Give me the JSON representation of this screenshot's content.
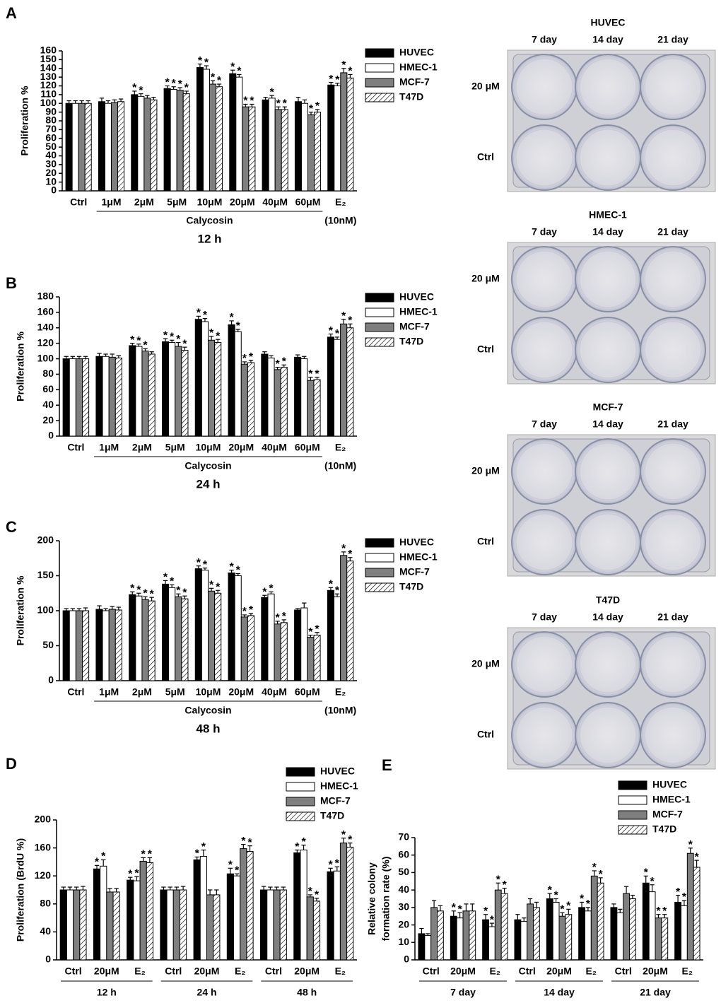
{
  "chart_data": [
    {
      "type": "bar",
      "panel": "A",
      "ylabel": "Proliferation %",
      "subtitle": "12 h",
      "group_label": "Calycosin",
      "note": "(10nM)",
      "categories": [
        "Ctrl",
        "1μM",
        "2μM",
        "5μM",
        "10μM",
        "20μM",
        "40μM",
        "60μM",
        "E₂"
      ],
      "ylim": [
        0,
        160
      ],
      "yticks": [
        0,
        10,
        20,
        30,
        40,
        50,
        60,
        70,
        80,
        90,
        100,
        110,
        120,
        130,
        140,
        150,
        160
      ],
      "legend": "upper right",
      "star": "*",
      "series": [
        {
          "name": "HUVEC",
          "color": "#000000",
          "values": [
            100,
            102,
            110,
            117,
            141,
            134,
            104,
            102,
            121
          ],
          "errors": [
            3,
            4,
            4,
            3,
            4,
            4,
            3,
            5,
            3
          ],
          "significance": [
            null,
            null,
            "*",
            "*",
            "*",
            "*",
            null,
            null,
            "*"
          ]
        },
        {
          "name": "HMEC-1",
          "color": "#ffffff",
          "values": [
            100,
            100,
            108,
            116,
            139,
            130,
            106,
            100,
            120
          ],
          "errors": [
            3,
            3,
            3,
            3,
            4,
            3,
            3,
            4,
            3
          ],
          "significance": [
            null,
            null,
            "*",
            "*",
            "*",
            "*",
            "*",
            null,
            "*"
          ]
        },
        {
          "name": "MCF-7",
          "color": "#7f7f7f",
          "values": [
            100,
            101,
            106,
            115,
            122,
            96,
            93,
            87,
            135
          ],
          "errors": [
            3,
            3,
            3,
            3,
            4,
            3,
            3,
            3,
            5
          ],
          "significance": [
            null,
            null,
            null,
            "*",
            "*",
            "*",
            "*",
            "*",
            "*"
          ]
        },
        {
          "name": "T47D",
          "color": "#ffffff",
          "hatch": true,
          "values": [
            100,
            102,
            104,
            111,
            119,
            96,
            93,
            90,
            129
          ],
          "errors": [
            3,
            3,
            3,
            3,
            3,
            3,
            3,
            3,
            4
          ],
          "significance": [
            null,
            null,
            null,
            "*",
            "*",
            "*",
            "*",
            "*",
            "*"
          ]
        }
      ]
    },
    {
      "type": "bar",
      "panel": "B",
      "ylabel": "Proliferation %",
      "subtitle": "24 h",
      "group_label": "Calycosin",
      "note": "(10nM)",
      "categories": [
        "Ctrl",
        "1μM",
        "2μM",
        "5μM",
        "10μM",
        "20μM",
        "40μM",
        "60μM",
        "E₂"
      ],
      "ylim": [
        0,
        180
      ],
      "yticks": [
        0,
        20,
        40,
        60,
        80,
        100,
        120,
        140,
        160,
        180
      ],
      "legend": "upper right",
      "star": "*",
      "series": [
        {
          "name": "HUVEC",
          "color": "#000000",
          "values": [
            100,
            103,
            117,
            122,
            151,
            144,
            106,
            102,
            128
          ],
          "errors": [
            3,
            4,
            3,
            4,
            4,
            5,
            3,
            3,
            4
          ],
          "significance": [
            null,
            null,
            "*",
            "*",
            "*",
            "*",
            null,
            null,
            "*"
          ]
        },
        {
          "name": "HMEC-1",
          "color": "#ffffff",
          "values": [
            100,
            103,
            116,
            121,
            148,
            135,
            101,
            100,
            125
          ],
          "errors": [
            3,
            3,
            3,
            3,
            4,
            3,
            3,
            3,
            3
          ],
          "significance": [
            null,
            null,
            "*",
            "*",
            "*",
            "*",
            null,
            null,
            "*"
          ]
        },
        {
          "name": "MCF-7",
          "color": "#7f7f7f",
          "values": [
            100,
            102,
            110,
            116,
            124,
            93,
            86,
            72,
            145
          ],
          "errors": [
            3,
            4,
            3,
            5,
            5,
            3,
            3,
            4,
            6
          ],
          "significance": [
            null,
            null,
            "*",
            "*",
            "*",
            "*",
            "*",
            "*",
            "*"
          ]
        },
        {
          "name": "T47D",
          "color": "#ffffff",
          "hatch": true,
          "values": [
            100,
            101,
            106,
            111,
            121,
            95,
            89,
            73,
            140
          ],
          "errors": [
            3,
            3,
            3,
            4,
            4,
            3,
            3,
            3,
            5
          ],
          "significance": [
            null,
            null,
            null,
            "*",
            "*",
            "*",
            "*",
            "*",
            "*"
          ]
        }
      ]
    },
    {
      "type": "bar",
      "panel": "C",
      "ylabel": "Proliferation %",
      "subtitle": "48 h",
      "group_label": "Calycosin",
      "note": "(10nM)",
      "categories": [
        "Ctrl",
        "1μM",
        "2μM",
        "5μM",
        "10μM",
        "20μM",
        "40μM",
        "60μM",
        "E₂"
      ],
      "ylim": [
        0,
        200
      ],
      "yticks": [
        0,
        50,
        100,
        150,
        200
      ],
      "legend": "upper right",
      "star": "*",
      "series": [
        {
          "name": "HUVEC",
          "color": "#000000",
          "values": [
            100,
            102,
            123,
            138,
            160,
            154,
            119,
            101,
            129
          ],
          "errors": [
            3,
            5,
            4,
            5,
            4,
            4,
            3,
            2,
            4
          ],
          "significance": [
            null,
            null,
            "*",
            "*",
            "*",
            "*",
            "*",
            null,
            "*"
          ]
        },
        {
          "name": "HMEC-1",
          "color": "#ffffff",
          "values": [
            100,
            100,
            121,
            133,
            158,
            150,
            124,
            104,
            120
          ],
          "errors": [
            3,
            3,
            4,
            4,
            3,
            3,
            3,
            7,
            4
          ],
          "significance": [
            null,
            null,
            "*",
            "*",
            "*",
            "*",
            "*",
            null,
            "*"
          ]
        },
        {
          "name": "MCF-7",
          "color": "#7f7f7f",
          "values": [
            100,
            102,
            116,
            120,
            128,
            91,
            81,
            62,
            179
          ],
          "errors": [
            3,
            4,
            4,
            4,
            4,
            3,
            4,
            3,
            5
          ],
          "significance": [
            null,
            null,
            "*",
            "*",
            "*",
            "*",
            "*",
            "*",
            "*"
          ]
        },
        {
          "name": "T47D",
          "color": "#ffffff",
          "hatch": true,
          "values": [
            100,
            101,
            114,
            117,
            125,
            93,
            83,
            65,
            171
          ],
          "errors": [
            4,
            4,
            5,
            4,
            4,
            3,
            4,
            4,
            5
          ],
          "significance": [
            null,
            null,
            "*",
            "*",
            "*",
            "*",
            "*",
            "*",
            "*"
          ]
        }
      ]
    },
    {
      "type": "bar",
      "panel": "D",
      "ylabel": "Proliferation (BrdU %)",
      "categories": [
        "Ctrl",
        "20μM",
        "E₂",
        "Ctrl",
        "20μM",
        "E₂",
        "Ctrl",
        "20μM",
        "E₂"
      ],
      "groups": [
        "12 h",
        "24 h",
        "48 h"
      ],
      "ylim": [
        0,
        200
      ],
      "yticks": [
        0,
        40,
        80,
        120,
        160,
        200
      ],
      "legend": "upper right",
      "star": "*",
      "series": [
        {
          "name": "HUVEC",
          "color": "#000000",
          "values": [
            100,
            130,
            114,
            100,
            143,
            123,
            100,
            153,
            126
          ],
          "errors": [
            4,
            5,
            4,
            4,
            4,
            8,
            5,
            4,
            5
          ],
          "significance": [
            null,
            "*",
            "*",
            null,
            "*",
            "*",
            null,
            "*",
            "*"
          ]
        },
        {
          "name": "HMEC-1",
          "color": "#ffffff",
          "values": [
            100,
            134,
            113,
            100,
            148,
            120,
            100,
            157,
            127
          ],
          "errors": [
            4,
            9,
            6,
            4,
            9,
            3,
            4,
            7,
            6
          ],
          "significance": [
            null,
            "*",
            "*",
            null,
            "*",
            "*",
            null,
            "*",
            "*"
          ]
        },
        {
          "name": "MCF-7",
          "color": "#7f7f7f",
          "values": [
            100,
            97,
            141,
            100,
            93,
            159,
            100,
            90,
            167
          ],
          "errors": [
            4,
            5,
            5,
            4,
            7,
            6,
            4,
            3,
            7
          ],
          "significance": [
            null,
            null,
            "*",
            null,
            null,
            "*",
            null,
            "*",
            "*"
          ]
        },
        {
          "name": "T47D",
          "color": "#ffffff",
          "hatch": true,
          "values": [
            100,
            97,
            139,
            100,
            93,
            155,
            100,
            84,
            161
          ],
          "errors": [
            5,
            5,
            7,
            5,
            7,
            8,
            4,
            4,
            6
          ],
          "significance": [
            null,
            null,
            "*",
            null,
            null,
            "*",
            null,
            "*",
            "*"
          ]
        }
      ]
    },
    {
      "type": "bar",
      "panel": "E",
      "ylabel": [
        "Relative colony",
        "formation rate (%)"
      ],
      "categories": [
        "Ctrl",
        "20μM",
        "E₂",
        "Ctrl",
        "20μM",
        "E₂",
        "Ctrl",
        "20μM",
        "E₂"
      ],
      "groups": [
        "7 day",
        "14 day",
        "21 day"
      ],
      "ylim": [
        0,
        70
      ],
      "yticks": [
        0,
        10,
        20,
        30,
        40,
        50,
        60,
        70
      ],
      "legend": "upper right",
      "star": "*",
      "series": [
        {
          "name": "HUVEC",
          "color": "#000000",
          "values": [
            15,
            25,
            23,
            23,
            35,
            30,
            30,
            44,
            33
          ],
          "errors": [
            3,
            3,
            3,
            3,
            3,
            3,
            2,
            4,
            4
          ],
          "significance": [
            null,
            "*",
            "*",
            null,
            "*",
            "*",
            null,
            "*",
            "*"
          ]
        },
        {
          "name": "HMEC-1",
          "color": "#ffffff",
          "values": [
            14,
            24,
            19,
            22,
            33,
            28,
            27,
            39,
            31
          ],
          "errors": [
            1,
            3,
            2,
            2,
            2,
            2,
            2,
            4,
            3
          ],
          "significance": [
            null,
            "*",
            "*",
            null,
            "*",
            "*",
            null,
            "*",
            "*"
          ]
        },
        {
          "name": "MCF-7",
          "color": "#7f7f7f",
          "values": [
            30,
            28,
            40,
            32,
            25,
            48,
            38,
            24,
            61
          ],
          "errors": [
            4,
            4,
            4,
            3,
            2,
            3,
            4,
            2,
            3
          ],
          "significance": [
            null,
            null,
            "*",
            null,
            "*",
            "*",
            null,
            "*",
            "*"
          ]
        },
        {
          "name": "T47D",
          "color": "#ffffff",
          "hatch": true,
          "values": [
            28,
            28,
            38,
            30,
            26,
            44,
            35,
            24,
            53
          ],
          "errors": [
            3,
            4,
            3,
            3,
            3,
            3,
            2,
            2,
            4
          ],
          "significance": [
            null,
            null,
            "*",
            null,
            "*",
            "*",
            null,
            "*",
            "*"
          ]
        }
      ]
    }
  ],
  "plates": [
    {
      "title": "HUVEC",
      "columns": [
        "7 day",
        "14 day",
        "21 day"
      ],
      "rows": [
        "20 μM",
        "Ctrl"
      ]
    },
    {
      "title": "HMEC-1",
      "columns": [
        "7 day",
        "14 day",
        "21 day"
      ],
      "rows": [
        "20 μM",
        "Ctrl"
      ]
    },
    {
      "title": "MCF-7",
      "columns": [
        "7 day",
        "14 day",
        "21 day"
      ],
      "rows": [
        "20 μM",
        "Ctrl"
      ]
    },
    {
      "title": "T47D",
      "columns": [
        "7 day",
        "14 day",
        "21 day"
      ],
      "rows": [
        "20 μM",
        "Ctrl"
      ]
    }
  ]
}
